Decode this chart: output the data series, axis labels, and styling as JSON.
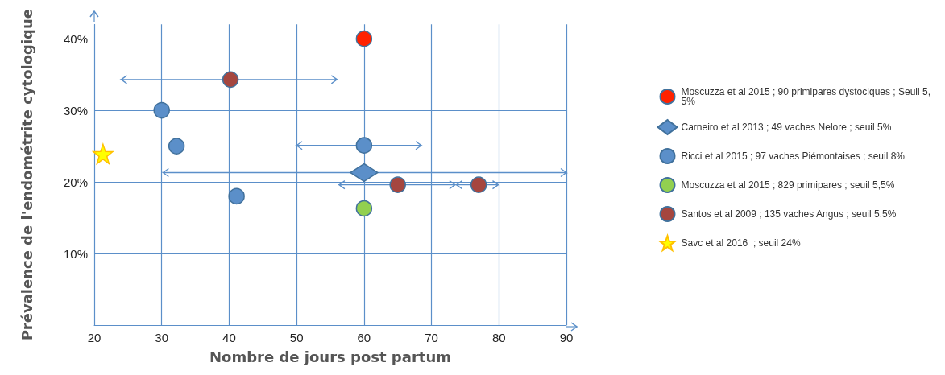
{
  "chart_data": {
    "type": "scatter",
    "xlabel": "Nombre de jours post partum",
    "ylabel": "Prévalence de l'endométrite cytologique",
    "xlim": [
      20,
      90
    ],
    "xticks": [
      20,
      30,
      40,
      50,
      60,
      70,
      80,
      90
    ],
    "ylim": [
      0,
      42
    ],
    "yticks": [
      {
        "value": 10,
        "label": "10%"
      },
      {
        "value": 20,
        "label": "20%"
      },
      {
        "value": 30,
        "label": "30%"
      },
      {
        "value": 40,
        "label": "40%"
      }
    ],
    "grid": true,
    "legend": "right",
    "series": [
      {
        "name": "Moscuzza et al 2015 ; 90 primipares dystociques ; Seuil 5,5%",
        "color": "#ff2200",
        "marker": "circle",
        "x": [
          60
        ],
        "values": [
          40
        ]
      },
      {
        "name": "Carneiro et al 2013 ; 49 vaches Nelore ; seuil 5%",
        "color": "#5b8fc9",
        "marker": "diamond",
        "x": [
          60
        ],
        "values": [
          21.3
        ],
        "xerrors": [
          [
            30.2,
            90
          ]
        ]
      },
      {
        "name": "Ricci et al 2015 ; 97 vaches Piémontaises ; seuil 8%",
        "color": "#5b8fc9",
        "marker": "circle",
        "x": [
          30,
          32.2,
          60,
          41.1
        ],
        "values": [
          30,
          25,
          25.1,
          18
        ],
        "xerrors": [
          null,
          null,
          [
            50,
            68.5
          ],
          null
        ]
      },
      {
        "name": "Moscuzza et al 2015 ; 829 primipares ; seuil 5,5%",
        "color": "#92d050",
        "marker": "circle",
        "x": [
          60
        ],
        "values": [
          16.3
        ]
      },
      {
        "name": "Santos et al 2009 ; 135 vaches Angus ; seuil 5.5%",
        "color": "#a5463f",
        "marker": "circle",
        "x": [
          40.2,
          65,
          77
        ],
        "values": [
          34.3,
          19.6,
          19.6
        ],
        "xerrors": [
          [
            24,
            56
          ],
          [
            56.3,
            73.5
          ],
          [
            73.7,
            79.9
          ]
        ]
      },
      {
        "name": "Savc et al 2016  ; seuil 24%",
        "color": "#ffff00",
        "marker": "star",
        "x": [
          21.3
        ],
        "values": [
          23.9
        ]
      }
    ]
  }
}
